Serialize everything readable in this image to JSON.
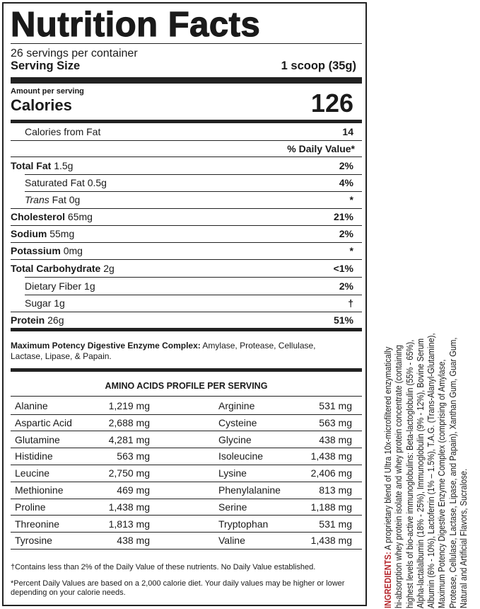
{
  "title": "Nutrition Facts",
  "servings_per_container": "26 servings per container",
  "serving_size_label": "Serving Size",
  "serving_size_value": "1 scoop (35g)",
  "amount_per_serving": "Amount per serving",
  "calories_label": "Calories",
  "calories_value": "126",
  "calories_from_fat_label": "Calories from Fat",
  "calories_from_fat_value": "14",
  "daily_value_header": "% Daily Value*",
  "nutrients": [
    {
      "name": "Total Fat",
      "amount": "1.5g",
      "dv": "2%"
    },
    {
      "name": "Saturated Fat",
      "amount": "0.5g",
      "dv": "4%"
    },
    {
      "name": "Trans",
      "name2": "Fat",
      "amount": "0g",
      "dv": "*"
    },
    {
      "name": "Cholesterol",
      "amount": "65mg",
      "dv": "21%"
    },
    {
      "name": "Sodium",
      "amount": "55mg",
      "dv": "2%"
    },
    {
      "name": "Potassium",
      "amount": "0mg",
      "dv": "*"
    },
    {
      "name": "Total Carbohydrate",
      "amount": "2g",
      "dv": "<1%"
    },
    {
      "name": "Dietary Fiber",
      "amount": "1g",
      "dv": "2%"
    },
    {
      "name": "Sugar",
      "amount": "1g",
      "dv": "†"
    },
    {
      "name": "Protein",
      "amount": "26g",
      "dv": "51%"
    }
  ],
  "enzyme": {
    "label": "Maximum Potency Digestive Enzyme Complex:",
    "text": "Amylase, Protease, Cellulase,",
    "text2": "Lactase, Lipase, & Papain."
  },
  "amino_header": "AMINO ACIDS PROFILE PER SERVING",
  "amino_acids": [
    [
      "Alanine",
      "1,219 mg",
      "Arginine",
      "531 mg"
    ],
    [
      "Aspartic Acid",
      "2,688 mg",
      "Cysteine",
      "563 mg"
    ],
    [
      "Glutamine",
      "4,281 mg",
      "Glycine",
      "438 mg"
    ],
    [
      "Histidine",
      "563 mg",
      "Isoleucine",
      "1,438 mg"
    ],
    [
      "Leucine",
      "2,750 mg",
      "Lysine",
      "2,406 mg"
    ],
    [
      "Methionine",
      "469 mg",
      "Phenylalanine",
      "813 mg"
    ],
    [
      "Proline",
      "1,438 mg",
      "Serine",
      "1,188 mg"
    ],
    [
      "Threonine",
      "1,813 mg",
      "Tryptophan",
      "531 mg"
    ],
    [
      "Tyrosine",
      "438 mg",
      "Valine",
      "1,438 mg"
    ]
  ],
  "footnote_dagger": "†Contains less than 2% of the Daily Value of these nutrients. No Daily Value established.",
  "footnote_star1": "*Percent Daily Values are based on a 2,000 calorie diet. Your daily values may be higher or lower",
  "footnote_star2": "depending on your calorie needs.",
  "ingredients": {
    "label": "INGREDIENTS:",
    "lines": [
      " A proprietary blend of Ultra 10x-microfiltered enzymatically",
      "hi-absorption whey protein isolate and whey protein concentrate (containing",
      "highest levels of bio-active immunoglobulins: Beta-lactoglobulin (55% - 65%),",
      "Alpha-lactalalbumin (18% - 25%), Immunoglobulin (9% - 12%), Bovine Serum",
      "Albumin (6% - 10%), Lactoferrin (1% – 1.5%), T.A.G. (Trans-Alanyl-Glutamine),",
      "Maximum Potency Digestive Enzyme Complex (comprising of Amylase,",
      "Protease, Cellulase, Lactase, Lipase, and Papain), Xanthan Gum, Guar Gum,",
      "Natural and Artificial Flavors, Sucralose."
    ]
  },
  "colors": {
    "ingredients_label": "#b5272d",
    "text": "#1a1a1a"
  }
}
